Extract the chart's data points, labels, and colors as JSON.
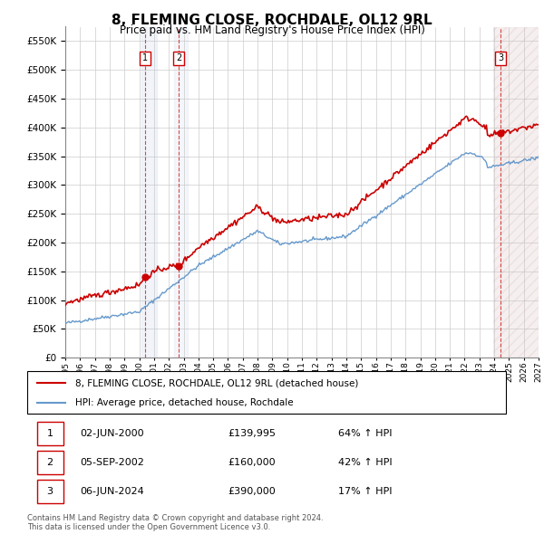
{
  "title": "8, FLEMING CLOSE, ROCHDALE, OL12 9RL",
  "subtitle": "Price paid vs. HM Land Registry's House Price Index (HPI)",
  "ylim": [
    0,
    575000
  ],
  "yticks": [
    0,
    50000,
    100000,
    150000,
    200000,
    250000,
    300000,
    350000,
    400000,
    450000,
    500000,
    550000
  ],
  "ytick_labels": [
    "£0",
    "£50K",
    "£100K",
    "£150K",
    "£200K",
    "£250K",
    "£300K",
    "£350K",
    "£400K",
    "£450K",
    "£500K",
    "£550K"
  ],
  "sale_color": "#cc0000",
  "hpi_color": "#6699cc",
  "transaction_color": "#cc0000",
  "sale_dates": [
    2000.42,
    2002.67,
    2024.43
  ],
  "sale_prices": [
    139995,
    160000,
    390000
  ],
  "sale_labels": [
    "1",
    "2",
    "3"
  ],
  "transaction_info": [
    {
      "label": "1",
      "date": "02-JUN-2000",
      "price": "£139,995",
      "hpi": "64% ↑ HPI"
    },
    {
      "label": "2",
      "date": "05-SEP-2002",
      "price": "£160,000",
      "hpi": "42% ↑ HPI"
    },
    {
      "label": "3",
      "date": "06-JUN-2024",
      "price": "£390,000",
      "hpi": "17% ↑ HPI"
    }
  ],
  "legend_line1": "8, FLEMING CLOSE, ROCHDALE, OL12 9RL (detached house)",
  "legend_line2": "HPI: Average price, detached house, Rochdale",
  "footer1": "Contains HM Land Registry data © Crown copyright and database right 2024.",
  "footer2": "This data is licensed under the Open Government Licence v3.0.",
  "xmin": 1995,
  "xmax": 2027,
  "xticks": [
    1995,
    1996,
    1997,
    1998,
    1999,
    2000,
    2001,
    2002,
    2003,
    2004,
    2005,
    2006,
    2007,
    2008,
    2009,
    2010,
    2011,
    2012,
    2013,
    2014,
    2015,
    2016,
    2017,
    2018,
    2019,
    2020,
    2021,
    2022,
    2023,
    2024,
    2025,
    2026,
    2027
  ]
}
